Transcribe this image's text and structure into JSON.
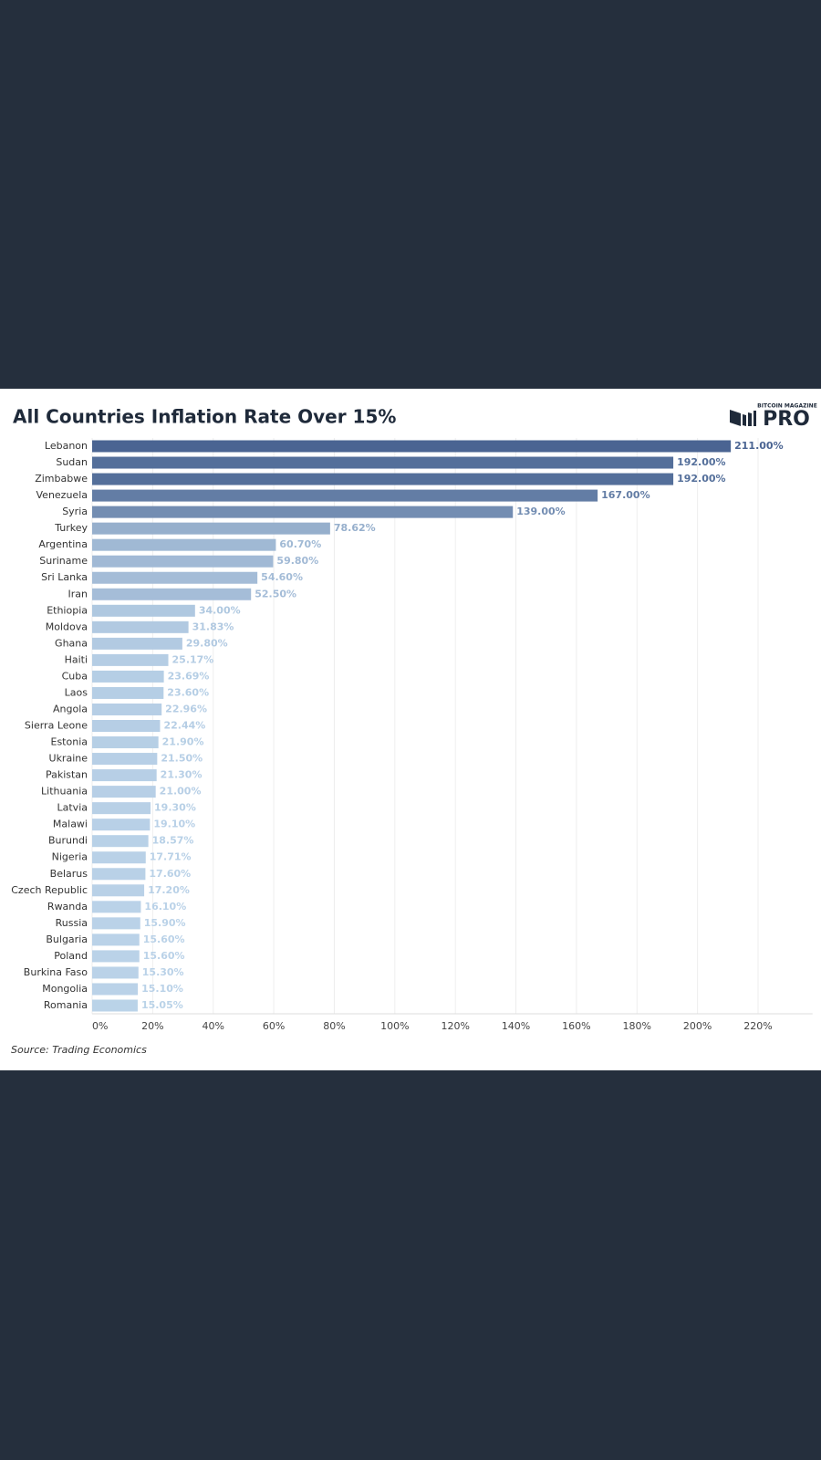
{
  "chart_data": {
    "type": "hbar",
    "title": "All Countries Inflation Rate Over 15%",
    "source": "Source: Trading Economics",
    "categories": [
      "Lebanon",
      "Sudan",
      "Zimbabwe",
      "Venezuela",
      "Syria",
      "Turkey",
      "Argentina",
      "Suriname",
      "Sri Lanka",
      "Iran",
      "Ethiopia",
      "Moldova",
      "Ghana",
      "Haiti",
      "Cuba",
      "Laos",
      "Angola",
      "Sierra Leone",
      "Estonia",
      "Ukraine",
      "Pakistan",
      "Lithuania",
      "Latvia",
      "Malawi",
      "Burundi",
      "Nigeria",
      "Belarus",
      "Czech Republic",
      "Rwanda",
      "Russia",
      "Bulgaria",
      "Poland",
      "Burkina Faso",
      "Mongolia",
      "Romania"
    ],
    "values": [
      211,
      192,
      192,
      167,
      139,
      78.62,
      60.7,
      59.8,
      54.6,
      52.5,
      34,
      31.83,
      29.8,
      25.17,
      23.69,
      23.6,
      22.96,
      22.44,
      21.9,
      21.5,
      21.3,
      21,
      19.3,
      19.1,
      18.57,
      17.71,
      17.6,
      17.2,
      16.1,
      15.9,
      15.6,
      15.6,
      15.3,
      15.1,
      15.05
    ],
    "value_labels": [
      "211.00%",
      "192.00%",
      "192.00%",
      "167.00%",
      "139.00%",
      "78.62%",
      "60.70%",
      "59.80%",
      "54.60%",
      "52.50%",
      "34.00%",
      "31.83%",
      "29.80%",
      "25.17%",
      "23.69%",
      "23.60%",
      "22.96%",
      "22.44%",
      "21.90%",
      "21.50%",
      "21.30%",
      "21.00%",
      "19.30%",
      "19.10%",
      "18.57%",
      "17.71%",
      "17.60%",
      "17.20%",
      "16.10%",
      "15.90%",
      "15.60%",
      "15.60%",
      "15.30%",
      "15.10%",
      "15.05%"
    ],
    "color_scale": [
      "#c3dbef",
      "#3a5586"
    ],
    "xlim": [
      0,
      238
    ],
    "xticks": [
      {
        "value": 0,
        "label": "0%"
      },
      {
        "value": 20,
        "label": "20%"
      },
      {
        "value": 40,
        "label": "40%"
      },
      {
        "value": 60,
        "label": "60%"
      },
      {
        "value": 80,
        "label": "80%"
      },
      {
        "value": 100,
        "label": "100%"
      },
      {
        "value": 120,
        "label": "120%"
      },
      {
        "value": 140,
        "label": "140%"
      },
      {
        "value": 160,
        "label": "160%"
      },
      {
        "value": 180,
        "label": "180%"
      },
      {
        "value": 200,
        "label": "200%"
      },
      {
        "value": 220,
        "label": "220%"
      }
    ],
    "grid": true
  },
  "brand": {
    "top": "BITCOIN MAGAZINE",
    "main": "PRO"
  }
}
